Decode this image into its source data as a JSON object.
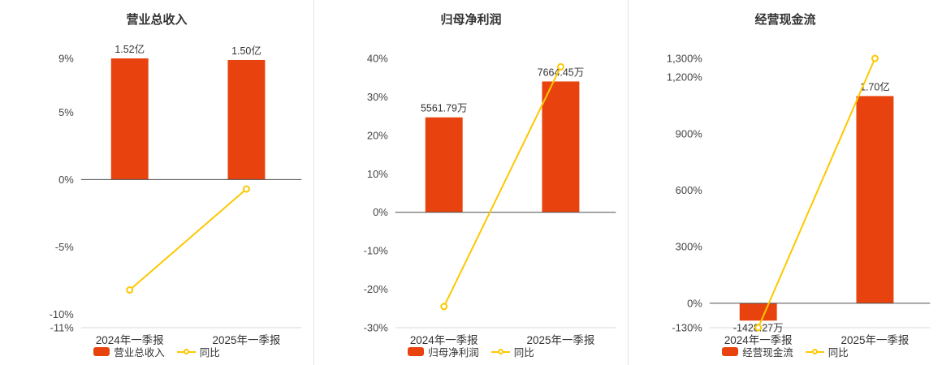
{
  "theme": {
    "background": "#ffffff",
    "bar_color": "#e8430e",
    "line_color": "#fdc800",
    "title_color": "#333333",
    "axis_label_color": "#454545",
    "zero_axis_color": "#4d4d4d",
    "bottom_axis_color": "#d9d9d9"
  },
  "chart_data": [
    {
      "type": "bar+line",
      "title": "营业总收入",
      "categories": [
        "2024年一季报",
        "2025年一季报"
      ],
      "bar_series": {
        "name": "营业总收入",
        "unit": "万元",
        "values": [
          15200,
          15000
        ],
        "labels": [
          "1.52亿",
          "1.50亿"
        ]
      },
      "line_series": {
        "name": "同比",
        "unit": "%",
        "values": [
          -8.2,
          -0.7
        ]
      },
      "ylim": [
        -11,
        9
      ],
      "yticks": [
        {
          "value": 9,
          "label": "9%"
        },
        {
          "value": 5,
          "label": "5%"
        },
        {
          "value": 0,
          "label": "0%"
        },
        {
          "value": -5,
          "label": "-5%"
        },
        {
          "value": -10,
          "label": "-10%"
        },
        {
          "value": -11,
          "label": "-11%"
        }
      ],
      "bar_axis_reach": 9,
      "legend_position": "bottom",
      "grid": false
    },
    {
      "type": "bar+line",
      "title": "归母净利润",
      "categories": [
        "2024年一季报",
        "2025年一季报"
      ],
      "bar_series": {
        "name": "归母净利润",
        "unit": "万元",
        "values": [
          5561.79,
          7664.45
        ],
        "labels": [
          "5561.79万",
          "7664.45万"
        ]
      },
      "line_series": {
        "name": "同比",
        "unit": "%",
        "values": [
          -24.5,
          37.8
        ]
      },
      "ylim": [
        -30,
        40
      ],
      "yticks": [
        {
          "value": 40,
          "label": "40%"
        },
        {
          "value": 30,
          "label": "30%"
        },
        {
          "value": 20,
          "label": "20%"
        },
        {
          "value": 10,
          "label": "10%"
        },
        {
          "value": 0,
          "label": "0%"
        },
        {
          "value": -10,
          "label": "-10%"
        },
        {
          "value": -20,
          "label": "-20%"
        },
        {
          "value": -30,
          "label": "-30%"
        }
      ],
      "bar_axis_reach": 34,
      "legend_position": "bottom",
      "grid": false
    },
    {
      "type": "bar+line",
      "title": "经营现金流",
      "categories": [
        "2024年一季报",
        "2025年一季报"
      ],
      "bar_series": {
        "name": "经营现金流",
        "unit": "万元",
        "values": [
          -1428.27,
          17000
        ],
        "labels": [
          "-1428.27万",
          "1.70亿"
        ]
      },
      "line_series": {
        "name": "同比",
        "unit": "%",
        "values": [
          -130,
          1300
        ]
      },
      "ylim": [
        -130,
        1300
      ],
      "yticks": [
        {
          "value": 1300,
          "label": "1,300%"
        },
        {
          "value": 1200,
          "label": "1,200%"
        },
        {
          "value": 900,
          "label": "900%"
        },
        {
          "value": 600,
          "label": "600%"
        },
        {
          "value": 300,
          "label": "300%"
        },
        {
          "value": 0,
          "label": "0%"
        },
        {
          "value": -130,
          "label": "-130%"
        }
      ],
      "bar_axis_reach": 1100,
      "legend_position": "bottom",
      "grid": false
    }
  ]
}
